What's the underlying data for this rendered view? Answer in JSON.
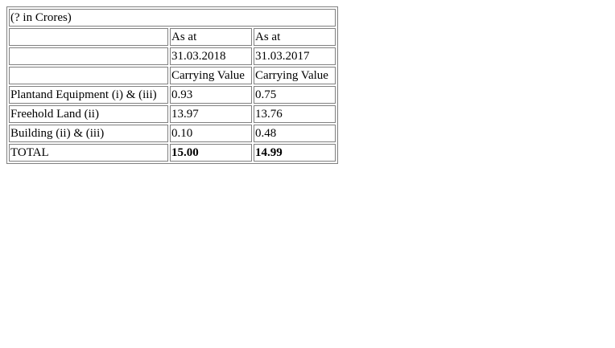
{
  "caption": "(? in Crores)",
  "header_rows": [
    [
      "",
      "As at",
      "As at"
    ],
    [
      "",
      "31.03.2018",
      "31.03.2017"
    ],
    [
      "",
      "Carrying Value",
      "Carrying Value"
    ]
  ],
  "rows": [
    {
      "label": "Plantand Equipment (i) & (iii)",
      "v2018": "0.93",
      "v2017": "0.75"
    },
    {
      "label": "Freehold Land (ii)",
      "v2018": "13.97",
      "v2017": "13.76"
    },
    {
      "label": "Building (ii) & (iii)",
      "v2018": "0.10",
      "v2017": "0.48"
    }
  ],
  "total": {
    "label": "TOTAL",
    "v2018": "15.00",
    "v2017": "14.99"
  }
}
